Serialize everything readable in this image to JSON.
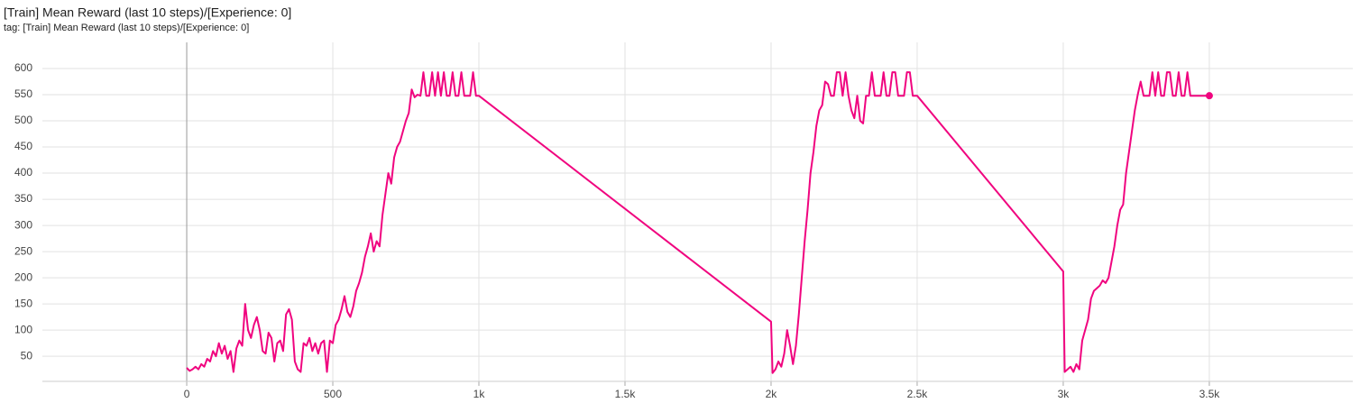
{
  "chart_data": {
    "type": "line",
    "title": "[Train] Mean Reward (last 10 steps)/[Experience: 0]",
    "subtitle": "tag: [Train] Mean Reward (last 10 steps)/[Experience: 0]",
    "color": "#f0047f",
    "grid": true,
    "xlim": [
      -494,
      3991
    ],
    "ylim": [
      2,
      650
    ],
    "xticks": [
      0,
      500,
      {
        "value": 1000,
        "label": "1k"
      },
      {
        "value": 1500,
        "label": "1.5k"
      },
      {
        "value": 2000,
        "label": "2k"
      },
      {
        "value": 2500,
        "label": "2.5k"
      },
      {
        "value": 3000,
        "label": "3k"
      },
      {
        "value": 3500,
        "label": "3.5k"
      }
    ],
    "yticks": [
      50,
      100,
      150,
      200,
      250,
      300,
      350,
      400,
      450,
      500,
      550,
      600
    ],
    "x": [
      0,
      10,
      20,
      30,
      40,
      50,
      60,
      70,
      80,
      90,
      100,
      110,
      120,
      130,
      140,
      150,
      160,
      170,
      180,
      190,
      200,
      210,
      220,
      230,
      240,
      250,
      260,
      270,
      280,
      290,
      300,
      310,
      320,
      330,
      340,
      350,
      360,
      370,
      380,
      390,
      400,
      410,
      420,
      430,
      440,
      450,
      460,
      470,
      480,
      490,
      500,
      510,
      520,
      530,
      540,
      550,
      560,
      570,
      580,
      590,
      600,
      610,
      620,
      630,
      640,
      650,
      660,
      670,
      680,
      690,
      700,
      710,
      720,
      730,
      740,
      750,
      760,
      770,
      780,
      790,
      800,
      810,
      820,
      830,
      840,
      850,
      860,
      870,
      880,
      890,
      900,
      910,
      920,
      930,
      940,
      950,
      960,
      970,
      980,
      990,
      1000,
      2000,
      2005,
      2015,
      2025,
      2035,
      2045,
      2055,
      2065,
      2075,
      2085,
      2095,
      2105,
      2115,
      2125,
      2135,
      2145,
      2155,
      2165,
      2175,
      2185,
      2195,
      2205,
      2215,
      2225,
      2235,
      2245,
      2255,
      2265,
      2275,
      2285,
      2295,
      2305,
      2315,
      2325,
      2335,
      2345,
      2355,
      2365,
      2375,
      2385,
      2395,
      2405,
      2415,
      2425,
      2435,
      2445,
      2455,
      2465,
      2475,
      2485,
      2500,
      3000,
      3005,
      3015,
      3025,
      3035,
      3045,
      3055,
      3065,
      3075,
      3085,
      3095,
      3105,
      3115,
      3125,
      3135,
      3145,
      3155,
      3165,
      3175,
      3185,
      3195,
      3205,
      3215,
      3225,
      3235,
      3245,
      3255,
      3265,
      3275,
      3285,
      3295,
      3305,
      3315,
      3325,
      3335,
      3345,
      3355,
      3365,
      3375,
      3385,
      3395,
      3405,
      3415,
      3425,
      3435,
      3450,
      3500
    ],
    "values": [
      28,
      22,
      25,
      30,
      25,
      35,
      30,
      45,
      40,
      60,
      50,
      75,
      55,
      70,
      45,
      60,
      20,
      65,
      80,
      70,
      150,
      100,
      85,
      110,
      125,
      100,
      60,
      55,
      95,
      85,
      40,
      75,
      80,
      60,
      130,
      140,
      120,
      40,
      25,
      20,
      75,
      70,
      85,
      60,
      75,
      55,
      75,
      80,
      20,
      80,
      75,
      110,
      120,
      140,
      165,
      135,
      125,
      145,
      175,
      190,
      210,
      240,
      260,
      285,
      250,
      270,
      260,
      320,
      360,
      400,
      380,
      430,
      450,
      460,
      480,
      500,
      515,
      560,
      545,
      550,
      548,
      593,
      548,
      548,
      593,
      548,
      593,
      548,
      593,
      548,
      548,
      593,
      548,
      548,
      593,
      548,
      548,
      548,
      593,
      548,
      548,
      116,
      18,
      25,
      40,
      30,
      55,
      100,
      70,
      35,
      70,
      130,
      200,
      270,
      330,
      400,
      440,
      490,
      520,
      530,
      575,
      570,
      548,
      548,
      593,
      593,
      548,
      593,
      548,
      520,
      505,
      548,
      500,
      495,
      548,
      548,
      593,
      548,
      548,
      548,
      593,
      548,
      548,
      593,
      593,
      548,
      548,
      548,
      593,
      593,
      548,
      548,
      212,
      20,
      25,
      30,
      20,
      35,
      25,
      80,
      100,
      120,
      160,
      175,
      180,
      185,
      195,
      190,
      200,
      230,
      260,
      300,
      330,
      340,
      400,
      440,
      480,
      520,
      550,
      575,
      548,
      548,
      548,
      593,
      548,
      593,
      548,
      548,
      593,
      593,
      548,
      548,
      593,
      548,
      548,
      593,
      548,
      548,
      548
    ]
  }
}
